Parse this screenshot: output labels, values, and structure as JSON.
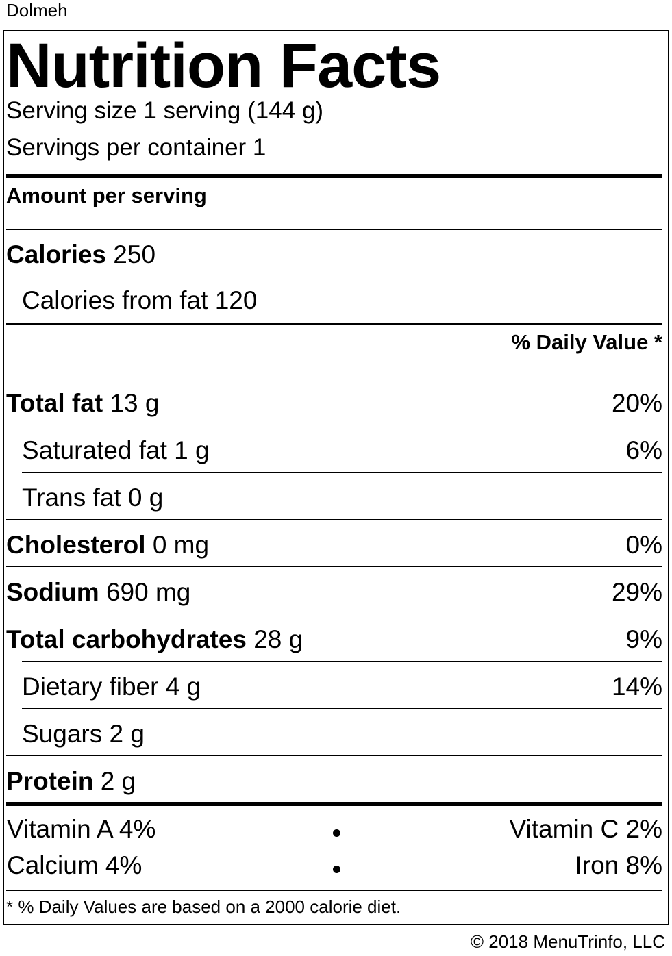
{
  "dish_name": "Dolmeh",
  "title": "Nutrition Facts",
  "serving_size": "Serving size 1 serving (144 g)",
  "servings_per_container": "Servings per container 1",
  "amount_per_serving": "Amount per serving",
  "calories": {
    "label": "Calories",
    "value": "250"
  },
  "calories_from_fat": "Calories from fat 120",
  "daily_value_header": "% Daily Value *",
  "nutrients": [
    {
      "label": "Total fat",
      "amount": "13 g",
      "pct": "20%"
    },
    {
      "label": "Saturated fat",
      "amount": "1 g",
      "pct": "6%"
    },
    {
      "label": "Trans fat",
      "amount": "0 g",
      "pct": ""
    },
    {
      "label": "Cholesterol",
      "amount": "0 mg",
      "pct": "0%"
    },
    {
      "label": "Sodium",
      "amount": "690 mg",
      "pct": "29%"
    },
    {
      "label": "Total carbohydrates",
      "amount": "28 g",
      "pct": "9%"
    },
    {
      "label": "Dietary fiber",
      "amount": "4 g",
      "pct": "14%"
    },
    {
      "label": "Sugars",
      "amount": "2 g",
      "pct": ""
    },
    {
      "label": "Protein",
      "amount": "2 g",
      "pct": ""
    }
  ],
  "vitamins": {
    "vitamin_a": "Vitamin A 4%",
    "vitamin_c": "Vitamin C 2%",
    "calcium": "Calcium 4%",
    "iron": "Iron 8%"
  },
  "footnote": "* % Daily Values are based on a 2000 calorie diet.",
  "copyright": "© 2018 MenuTrinfo, LLC"
}
